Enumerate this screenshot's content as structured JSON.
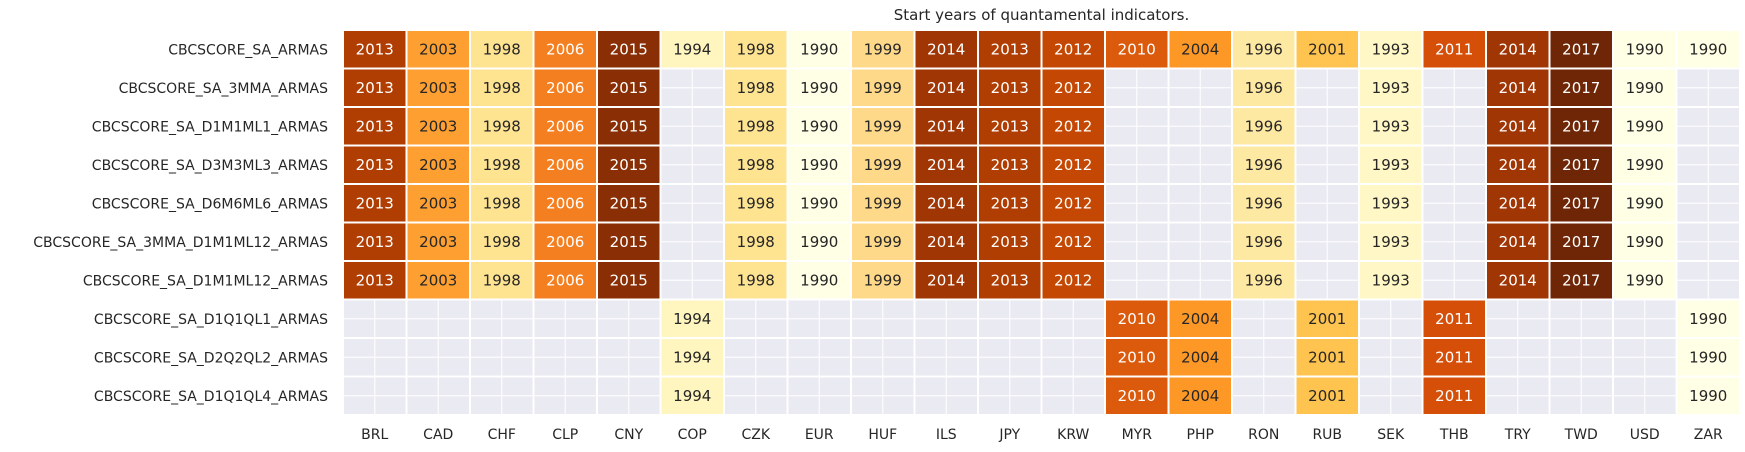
{
  "chart_data": {
    "type": "heatmap",
    "title": "Start years of quantamental indicators.",
    "xlabel": "",
    "ylabel": "",
    "columns": [
      "BRL",
      "CAD",
      "CHF",
      "CLP",
      "CNY",
      "COP",
      "CZK",
      "EUR",
      "HUF",
      "ILS",
      "JPY",
      "KRW",
      "MYR",
      "PHP",
      "RON",
      "RUB",
      "SEK",
      "THB",
      "TRY",
      "TWD",
      "USD",
      "ZAR"
    ],
    "rows": [
      "CBCSCORE_SA_ARMAS",
      "CBCSCORE_SA_3MMA_ARMAS",
      "CBCSCORE_SA_D1M1ML1_ARMAS",
      "CBCSCORE_SA_D3M3ML3_ARMAS",
      "CBCSCORE_SA_D6M6ML6_ARMAS",
      "CBCSCORE_SA_3MMA_D1M1ML12_ARMAS",
      "CBCSCORE_SA_D1M1ML12_ARMAS",
      "CBCSCORE_SA_D1Q1QL1_ARMAS",
      "CBCSCORE_SA_D2Q2QL2_ARMAS",
      "CBCSCORE_SA_D1Q1QL4_ARMAS"
    ],
    "values": [
      [
        2013,
        2003,
        1998,
        2006,
        2015,
        1994,
        1998,
        1990,
        1999,
        2014,
        2013,
        2012,
        2010,
        2004,
        1996,
        2001,
        1993,
        2011,
        2014,
        2017,
        1990,
        1990
      ],
      [
        2013,
        2003,
        1998,
        2006,
        2015,
        null,
        1998,
        1990,
        1999,
        2014,
        2013,
        2012,
        null,
        null,
        1996,
        null,
        1993,
        null,
        2014,
        2017,
        1990,
        null
      ],
      [
        2013,
        2003,
        1998,
        2006,
        2015,
        null,
        1998,
        1990,
        1999,
        2014,
        2013,
        2012,
        null,
        null,
        1996,
        null,
        1993,
        null,
        2014,
        2017,
        1990,
        null
      ],
      [
        2013,
        2003,
        1998,
        2006,
        2015,
        null,
        1998,
        1990,
        1999,
        2014,
        2013,
        2012,
        null,
        null,
        1996,
        null,
        1993,
        null,
        2014,
        2017,
        1990,
        null
      ],
      [
        2013,
        2003,
        1998,
        2006,
        2015,
        null,
        1998,
        1990,
        1999,
        2014,
        2013,
        2012,
        null,
        null,
        1996,
        null,
        1993,
        null,
        2014,
        2017,
        1990,
        null
      ],
      [
        2013,
        2003,
        1998,
        2006,
        2015,
        null,
        1998,
        1990,
        1999,
        2014,
        2013,
        2012,
        null,
        null,
        1996,
        null,
        1993,
        null,
        2014,
        2017,
        1990,
        null
      ],
      [
        2013,
        2003,
        1998,
        2006,
        2015,
        null,
        1998,
        1990,
        1999,
        2014,
        2013,
        2012,
        null,
        null,
        1996,
        null,
        1993,
        null,
        2014,
        2017,
        1990,
        null
      ],
      [
        null,
        null,
        null,
        null,
        null,
        1994,
        null,
        null,
        null,
        null,
        null,
        null,
        2010,
        2004,
        null,
        2001,
        null,
        2011,
        null,
        null,
        null,
        1990
      ],
      [
        null,
        null,
        null,
        null,
        null,
        1994,
        null,
        null,
        null,
        null,
        null,
        null,
        2010,
        2004,
        null,
        2001,
        null,
        2011,
        null,
        null,
        null,
        1990
      ],
      [
        null,
        null,
        null,
        null,
        null,
        1994,
        null,
        null,
        null,
        null,
        null,
        null,
        2010,
        2004,
        null,
        2001,
        null,
        2011,
        null,
        null,
        null,
        1990
      ]
    ],
    "color_map": {
      "1990": "#ffffe5",
      "1993": "#fff8c6",
      "1994": "#fff6bf",
      "1996": "#fee9a3",
      "1998": "#fee391",
      "1999": "#fed98a",
      "2001": "#fec44f",
      "2003": "#fe9f32",
      "2004": "#fd9826",
      "2006": "#f47f20",
      "2010": "#dc5a0c",
      "2011": "#d54f08",
      "2012": "#c44803",
      "2013": "#b03e03",
      "2014": "#a13605",
      "2015": "#8a2f05",
      "2017": "#6f2606"
    },
    "missing_color": "#eaeaf2",
    "grid_color": "#ffffff"
  }
}
